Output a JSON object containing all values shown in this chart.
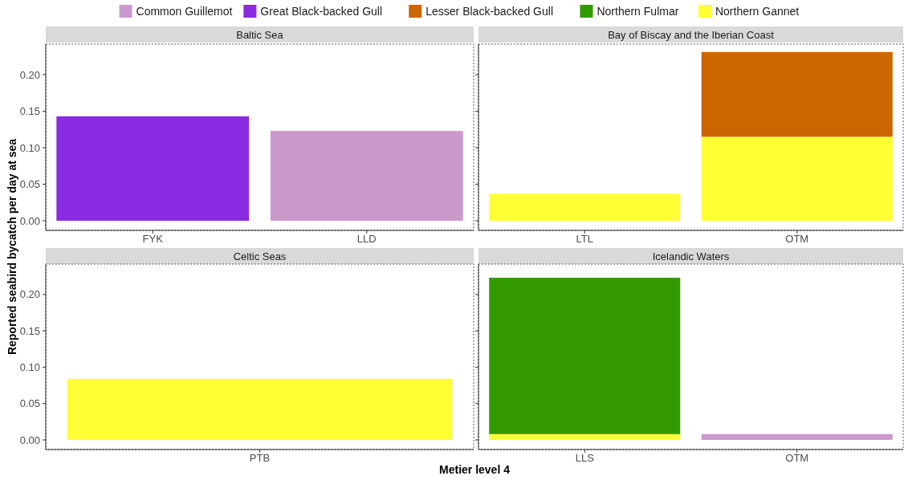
{
  "chart_data": [
    {
      "type": "bar",
      "title": "Baltic Sea",
      "categories": [
        "FYK",
        "LLD"
      ],
      "stacked": true,
      "legend": "top",
      "ylabel": "Reported seabird bycatch per day at sea",
      "ylim": [
        -0.0132,
        0.2418
      ],
      "yticks": [
        {
          "value": 0,
          "label": "0.00"
        },
        {
          "value": 0.05,
          "label": "0.05"
        },
        {
          "value": 0.1,
          "label": "0.10"
        },
        {
          "value": 0.15,
          "label": "0.15"
        },
        {
          "value": 0.2,
          "label": "0.20"
        }
      ],
      "series": [
        {
          "name": "Northern Gannet",
          "color": "#ffff33",
          "values": [
            null,
            null
          ]
        },
        {
          "name": "Northern Fulmar",
          "color": "#339900",
          "values": [
            null,
            null
          ]
        },
        {
          "name": "Lesser Black-backed Gull",
          "color": "#cc6600",
          "values": [
            null,
            null
          ]
        },
        {
          "name": "Great Black-backed Gull",
          "color": "#8a2be2",
          "values": [
            0.143,
            null
          ]
        },
        {
          "name": "Common Guillemot",
          "color": "#cc99cc",
          "values": [
            null,
            0.123
          ]
        }
      ]
    },
    {
      "type": "bar",
      "title": "Bay of Biscay and the Iberian Coast",
      "categories": [
        "LTL",
        "OTM"
      ],
      "stacked": true,
      "tick_labels": "x",
      "ylim": [
        -0.0132,
        0.2418
      ],
      "yticks": [
        {
          "value": 0,
          "label": null
        },
        {
          "value": 0.05,
          "label": null
        },
        {
          "value": 0.1,
          "label": null
        },
        {
          "value": 0.15,
          "label": null
        },
        {
          "value": 0.2,
          "label": null
        }
      ],
      "series": [
        {
          "color": "#ffff33",
          "values": [
            0.037,
            0.115
          ]
        },
        {
          "color": "#cc6600",
          "values": [
            null,
            0.116
          ]
        }
      ]
    },
    {
      "type": "bar",
      "title": "Celtic Seas",
      "categories": [
        "PTB"
      ],
      "stacked": true,
      "ylim": [
        -0.0132,
        0.2418
      ],
      "yticks": [
        {
          "value": 0,
          "label": "0.00"
        },
        {
          "value": 0.05,
          "label": "0.05"
        },
        {
          "value": 0.1,
          "label": "0.10"
        },
        {
          "value": 0.15,
          "label": "0.15"
        },
        {
          "value": 0.2,
          "label": "0.20"
        }
      ],
      "series": [
        {
          "color": "#ffff33",
          "values": [
            0.084
          ]
        }
      ]
    },
    {
      "type": "bar",
      "title": "Icelandic Waters",
      "categories": [
        "LLS",
        "OTM"
      ],
      "stacked": true,
      "tick_labels": "x",
      "xlabel": "Metier level 4",
      "ylim": [
        -0.0132,
        0.2418
      ],
      "yticks": [
        {
          "value": 0,
          "label": null
        },
        {
          "value": 0.05,
          "label": null
        },
        {
          "value": 0.1,
          "label": null
        },
        {
          "value": 0.15,
          "label": null
        },
        {
          "value": 0.2,
          "label": null
        }
      ],
      "series": [
        {
          "color": "#ffff33",
          "values": [
            0.008,
            null
          ]
        },
        {
          "color": "#339900",
          "values": [
            0.215,
            null
          ]
        },
        {
          "color": "#cc99cc",
          "values": [
            null,
            0.008
          ]
        }
      ]
    }
  ]
}
